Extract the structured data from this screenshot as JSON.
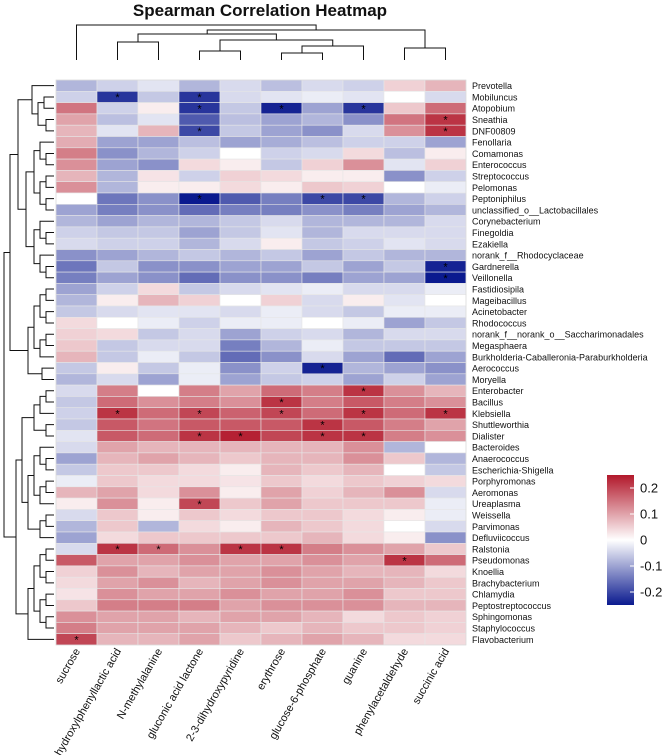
{
  "chart_data": {
    "type": "heatmap",
    "title": "Spearman Correlation Heatmap",
    "columns": [
      "sucrose",
      "DL-p-hydroxylphenyllactic acid",
      "N-methylalanine",
      "gluconic acid lactone",
      "2-3-dihydroxypyridine",
      "erythrose",
      "glucose-6-phosphate",
      "guanine",
      "phenylacetaldehyde",
      "succinic acid"
    ],
    "rows": [
      "Prevotella",
      "Mobiluncus",
      "Atopobium",
      "Sneathia",
      "DNF00809",
      "Fenollaria",
      "Comamonas",
      "Enterococcus",
      "Streptococcus",
      "Pelomonas",
      "Peptoniphilus",
      "unclassified_o__Lactobacillales",
      "Corynebacterium",
      "Finegoldia",
      "Ezakiella",
      "norank_f__Rhodocyclaceae",
      "Gardnerella",
      "Veillonella",
      "Fastidiosipila",
      "Mageibacillus",
      "Acinetobacter",
      "Rhodococcus",
      "norank_f__norank_o__Saccharimonadales",
      "Megasphaera",
      "Burkholderia-Caballeronia-Paraburkholderia",
      "Aerococcus",
      "Moryella",
      "Enterobacter",
      "Bacillus",
      "Klebsiella",
      "Shuttleworthia",
      "Dialister",
      "Bacteroides",
      "Anaerococcus",
      "Escherichia-Shigella",
      "Porphyromonas",
      "Aeromonas",
      "Ureaplasma",
      "Weissella",
      "Parvimonas",
      "Defluviicoccus",
      "Ralstonia",
      "Pseudomonas",
      "Knoellia",
      "Brachybacterium",
      "Chlamydia",
      "Peptostreptococcus",
      "Sphingomonas",
      "Staphylococcus",
      "Flavobacterium"
    ],
    "values": [
      [
        -0.08,
        -0.05,
        -0.03,
        -0.08,
        -0.04,
        -0.07,
        -0.04,
        -0.05,
        0.05,
        0.08
      ],
      [
        -0.05,
        -0.22,
        -0.06,
        -0.22,
        -0.04,
        -0.03,
        -0.02,
        -0.03,
        0.0,
        -0.04
      ],
      [
        0.15,
        -0.05,
        0.02,
        -0.22,
        -0.06,
        -0.24,
        -0.1,
        -0.22,
        0.06,
        0.16
      ],
      [
        0.1,
        -0.07,
        -0.03,
        -0.18,
        -0.07,
        -0.1,
        -0.08,
        -0.12,
        0.15,
        0.22
      ],
      [
        0.08,
        -0.03,
        0.08,
        -0.2,
        -0.06,
        -0.1,
        -0.12,
        -0.04,
        0.12,
        0.22
      ],
      [
        0.09,
        -0.1,
        -0.1,
        -0.07,
        -0.1,
        -0.09,
        -0.07,
        -0.05,
        -0.05,
        -0.1
      ],
      [
        0.14,
        -0.12,
        -0.08,
        -0.05,
        0.0,
        -0.05,
        -0.04,
        0.04,
        -0.07,
        0.02
      ],
      [
        0.12,
        -0.1,
        -0.12,
        0.04,
        0.02,
        -0.06,
        0.05,
        0.12,
        -0.03,
        0.05
      ],
      [
        0.08,
        -0.08,
        0.03,
        -0.05,
        0.05,
        0.04,
        0.02,
        0.02,
        -0.12,
        -0.05
      ],
      [
        0.12,
        -0.08,
        0.02,
        0.02,
        0.04,
        0.02,
        0.06,
        0.05,
        0.0,
        -0.02
      ],
      [
        0.0,
        -0.15,
        -0.12,
        -0.28,
        -0.18,
        -0.14,
        -0.2,
        -0.2,
        -0.08,
        -0.05
      ],
      [
        -0.1,
        -0.14,
        -0.12,
        -0.16,
        -0.14,
        -0.14,
        -0.12,
        -0.14,
        -0.1,
        -0.08
      ],
      [
        -0.08,
        -0.1,
        -0.08,
        -0.08,
        -0.06,
        -0.04,
        -0.08,
        -0.08,
        -0.08,
        -0.04
      ],
      [
        -0.05,
        -0.06,
        -0.06,
        -0.1,
        -0.06,
        -0.03,
        -0.08,
        -0.04,
        -0.04,
        -0.04
      ],
      [
        -0.04,
        -0.05,
        -0.05,
        -0.08,
        -0.04,
        0.02,
        -0.06,
        -0.05,
        -0.03,
        -0.04
      ],
      [
        -0.12,
        -0.1,
        -0.08,
        -0.06,
        -0.08,
        -0.06,
        -0.1,
        -0.06,
        -0.08,
        -0.08
      ],
      [
        -0.15,
        -0.06,
        -0.12,
        -0.12,
        -0.1,
        -0.1,
        -0.06,
        -0.1,
        -0.06,
        -0.24
      ],
      [
        -0.14,
        -0.1,
        -0.12,
        -0.16,
        -0.12,
        -0.12,
        -0.14,
        -0.1,
        -0.1,
        -0.26
      ],
      [
        -0.1,
        -0.05,
        0.04,
        -0.06,
        -0.04,
        -0.03,
        -0.02,
        -0.04,
        -0.04,
        -0.02
      ],
      [
        -0.08,
        0.02,
        0.08,
        0.05,
        0.0,
        0.05,
        -0.04,
        0.02,
        -0.03,
        0.0
      ],
      [
        -0.06,
        -0.04,
        -0.03,
        -0.03,
        -0.04,
        -0.02,
        -0.04,
        -0.06,
        -0.02,
        -0.02
      ],
      [
        0.04,
        0.0,
        -0.02,
        -0.05,
        -0.02,
        -0.02,
        0.0,
        -0.02,
        -0.1,
        -0.06
      ],
      [
        0.05,
        0.04,
        -0.06,
        -0.04,
        -0.1,
        -0.05,
        -0.04,
        -0.08,
        -0.04,
        -0.04
      ],
      [
        0.06,
        -0.06,
        -0.04,
        -0.04,
        -0.14,
        -0.08,
        -0.02,
        -0.06,
        -0.06,
        -0.06
      ],
      [
        0.08,
        -0.06,
        -0.02,
        -0.06,
        -0.16,
        -0.12,
        -0.04,
        -0.1,
        -0.16,
        -0.1
      ],
      [
        -0.06,
        0.02,
        -0.06,
        -0.02,
        -0.12,
        -0.05,
        -0.24,
        -0.08,
        -0.1,
        -0.12
      ],
      [
        -0.08,
        -0.04,
        -0.1,
        -0.02,
        -0.1,
        -0.06,
        -0.05,
        -0.1,
        -0.05,
        -0.1
      ],
      [
        -0.04,
        0.14,
        0.0,
        0.14,
        0.1,
        0.16,
        0.14,
        0.22,
        0.12,
        0.08
      ],
      [
        -0.06,
        0.16,
        0.12,
        0.14,
        0.12,
        0.22,
        0.14,
        0.18,
        0.14,
        0.12
      ],
      [
        -0.05,
        0.22,
        0.16,
        0.2,
        0.17,
        0.2,
        0.16,
        0.22,
        0.16,
        0.22
      ],
      [
        -0.06,
        0.18,
        0.15,
        0.18,
        0.18,
        0.18,
        0.22,
        0.18,
        0.14,
        0.1
      ],
      [
        -0.03,
        0.18,
        0.16,
        0.22,
        0.24,
        0.2,
        0.22,
        0.22,
        0.14,
        0.12
      ],
      [
        -0.04,
        0.1,
        0.08,
        0.08,
        0.08,
        0.08,
        0.08,
        0.12,
        -0.08,
        0.0
      ],
      [
        -0.1,
        0.08,
        0.1,
        0.08,
        0.06,
        0.08,
        0.08,
        0.12,
        0.06,
        -0.08
      ],
      [
        -0.06,
        0.06,
        0.06,
        0.04,
        0.02,
        0.08,
        0.06,
        0.08,
        0.0,
        -0.06
      ],
      [
        -0.02,
        0.06,
        0.04,
        0.04,
        0.03,
        0.06,
        0.04,
        0.06,
        0.05,
        0.04
      ],
      [
        0.08,
        0.1,
        0.04,
        0.12,
        0.02,
        0.1,
        0.05,
        0.08,
        0.12,
        -0.04
      ],
      [
        0.02,
        0.12,
        0.02,
        0.2,
        0.06,
        0.1,
        0.06,
        0.06,
        0.06,
        -0.02
      ],
      [
        -0.04,
        0.06,
        0.02,
        0.06,
        0.04,
        0.06,
        0.06,
        0.04,
        0.02,
        -0.02
      ],
      [
        -0.08,
        0.06,
        -0.08,
        0.04,
        0.02,
        0.08,
        0.06,
        0.04,
        0.0,
        -0.04
      ],
      [
        -0.1,
        0.04,
        0.06,
        0.06,
        0.06,
        0.06,
        0.08,
        0.04,
        0.02,
        -0.12
      ],
      [
        -0.04,
        0.22,
        0.16,
        0.12,
        0.22,
        0.22,
        0.14,
        0.12,
        0.1,
        0.06
      ],
      [
        0.18,
        0.1,
        0.1,
        0.12,
        0.1,
        0.1,
        0.12,
        0.1,
        0.22,
        0.16
      ],
      [
        0.05,
        0.12,
        0.08,
        0.1,
        0.1,
        0.12,
        0.1,
        0.08,
        0.08,
        0.04
      ],
      [
        0.04,
        0.1,
        0.12,
        0.08,
        0.1,
        0.12,
        0.1,
        0.1,
        0.08,
        0.06
      ],
      [
        0.03,
        0.12,
        0.1,
        0.1,
        0.12,
        0.1,
        0.1,
        0.12,
        0.06,
        0.06
      ],
      [
        0.06,
        0.14,
        0.14,
        0.14,
        0.1,
        0.12,
        0.12,
        0.12,
        0.08,
        0.08
      ],
      [
        0.12,
        0.1,
        0.1,
        0.08,
        0.1,
        0.1,
        0.08,
        0.04,
        0.06,
        0.05
      ],
      [
        0.14,
        0.1,
        0.1,
        0.1,
        0.08,
        0.06,
        0.08,
        0.06,
        0.06,
        0.05
      ],
      [
        0.2,
        0.08,
        0.08,
        0.1,
        0.06,
        0.08,
        0.1,
        0.08,
        0.04,
        0.04
      ]
    ],
    "significant": [
      [
        1,
        1
      ],
      [
        1,
        3
      ],
      [
        2,
        3
      ],
      [
        2,
        5
      ],
      [
        2,
        7
      ],
      [
        3,
        9
      ],
      [
        4,
        3
      ],
      [
        4,
        9
      ],
      [
        10,
        3
      ],
      [
        10,
        6
      ],
      [
        10,
        7
      ],
      [
        16,
        9
      ],
      [
        17,
        9
      ],
      [
        25,
        6
      ],
      [
        27,
        7
      ],
      [
        28,
        5
      ],
      [
        29,
        1
      ],
      [
        29,
        3
      ],
      [
        29,
        5
      ],
      [
        29,
        7
      ],
      [
        29,
        9
      ],
      [
        30,
        6
      ],
      [
        31,
        3
      ],
      [
        31,
        4
      ],
      [
        31,
        6
      ],
      [
        31,
        7
      ],
      [
        37,
        3
      ],
      [
        41,
        1
      ],
      [
        41,
        2
      ],
      [
        41,
        4
      ],
      [
        41,
        5
      ],
      [
        42,
        8
      ],
      [
        49,
        0
      ]
    ],
    "significance_marker": "*",
    "value_range": [
      -0.25,
      0.25
    ],
    "colorbar_ticks": [
      0.2,
      0.1,
      0,
      -0.1,
      -0.2
    ],
    "colorbar_tick_labels": [
      "0.2",
      "0.1",
      "0",
      "-0.1",
      "-0.2"
    ],
    "colors": {
      "negative": "#0b1a8f",
      "zero": "#ffffff",
      "positive": "#b2182b"
    }
  }
}
